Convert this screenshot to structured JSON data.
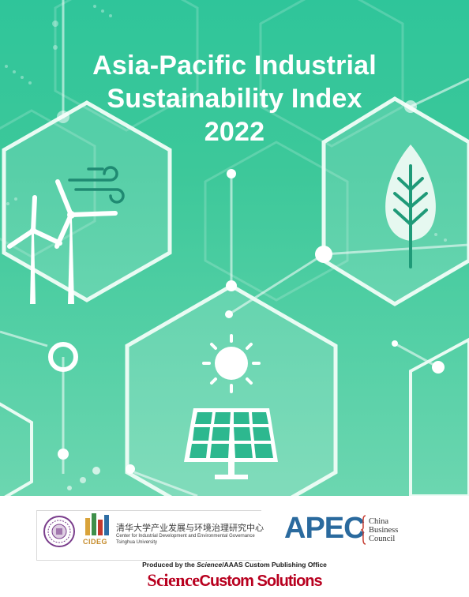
{
  "cover": {
    "title_line1": "Asia-Pacific Industrial",
    "title_line2": "Sustainability Index",
    "title_line3": "2022",
    "colors": {
      "background_top": "#2fc59a",
      "background_bottom": "#6cd6b0",
      "line": "#ffffff"
    },
    "icons": [
      "wind-turbine-icon",
      "wind-gust-icon",
      "leaf-icon",
      "sun-icon",
      "solar-panel-icon"
    ]
  },
  "footer": {
    "tsinghua_logo": "tsinghua-seal-logo",
    "cideg_label": "CIDEG",
    "cideg_chinese": "清华大学产业发展与环境治理研究中心",
    "cideg_english_1": "Center for Industrial Development and Environmental Governance",
    "cideg_english_2": "Tsinghua University",
    "apec_label": "APEC",
    "cbc_line1": "China",
    "cbc_line2": "Business",
    "cbc_line3": "Council",
    "produced_prefix": "Produced by the ",
    "produced_italic": "Science",
    "produced_suffix": "/AAAS Custom Publishing Office",
    "brand_science": "Science",
    "brand_custom": "Custom Solutions",
    "colors": {
      "apec": "#2a6a9e",
      "science_red": "#b8001f",
      "cideg_gold": "#c58b2a"
    }
  }
}
